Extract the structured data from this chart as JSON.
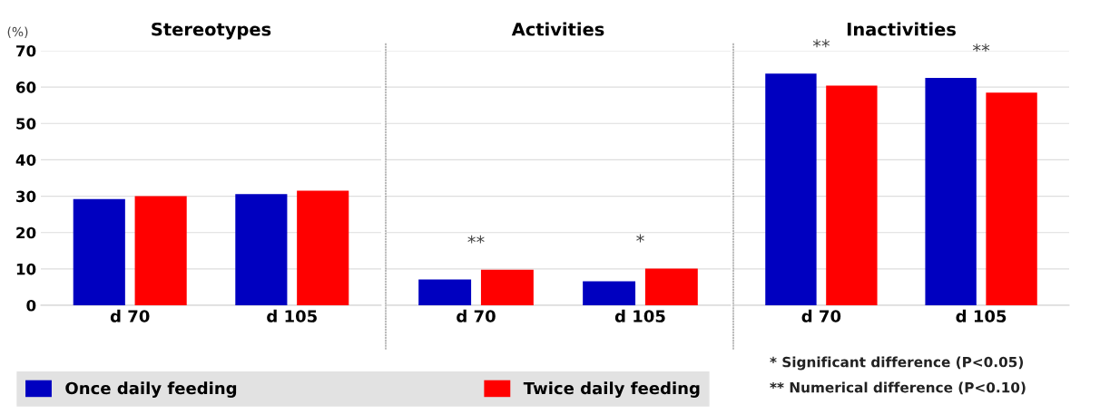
{
  "chart_data": [
    {
      "type": "bar",
      "title": "Stereotypes",
      "ylabel": "(%)",
      "categories": [
        "d 70",
        "d 105"
      ],
      "series": [
        {
          "name": "Once daily feeding",
          "color": "#0000c0",
          "values": [
            29.2,
            30.6
          ]
        },
        {
          "name": "Twice daily feeding",
          "color": "#ff0000",
          "values": [
            30.0,
            31.5
          ]
        }
      ],
      "ylim": [
        0,
        70
      ],
      "yticks": [
        0,
        10,
        20,
        30,
        40,
        50,
        60,
        70
      ],
      "grid": "y",
      "legend": "bottom"
    },
    {
      "type": "bar",
      "title": "Activities",
      "categories": [
        "d 70",
        "d 105"
      ],
      "series": [
        {
          "color": "#0000c0",
          "values": [
            7.1,
            6.6
          ]
        },
        {
          "color": "#ff0000",
          "values": [
            9.8,
            10.1
          ]
        }
      ],
      "ylim": [
        0,
        70
      ],
      "yticks": [
        0,
        10,
        20,
        30,
        40,
        50,
        60,
        70
      ],
      "grid": "y",
      "tick_labels": "x",
      "annotations": [
        "**",
        "*"
      ]
    },
    {
      "type": "bar",
      "title": "Inactivities",
      "categories": [
        "d 70",
        "d 105"
      ],
      "series": [
        {
          "color": "#0000c0",
          "values": [
            63.7,
            62.5
          ]
        },
        {
          "color": "#ff0000",
          "values": [
            60.4,
            58.5
          ]
        }
      ],
      "ylim": [
        0,
        70
      ],
      "yticks": [
        0,
        10,
        20,
        30,
        40,
        50,
        60,
        70
      ],
      "grid": "y",
      "tick_labels": "x",
      "annotations": [
        "**",
        "**",
        "* Significant difference (P<0.05)",
        "** Numerical difference (P<0.10)"
      ]
    }
  ]
}
